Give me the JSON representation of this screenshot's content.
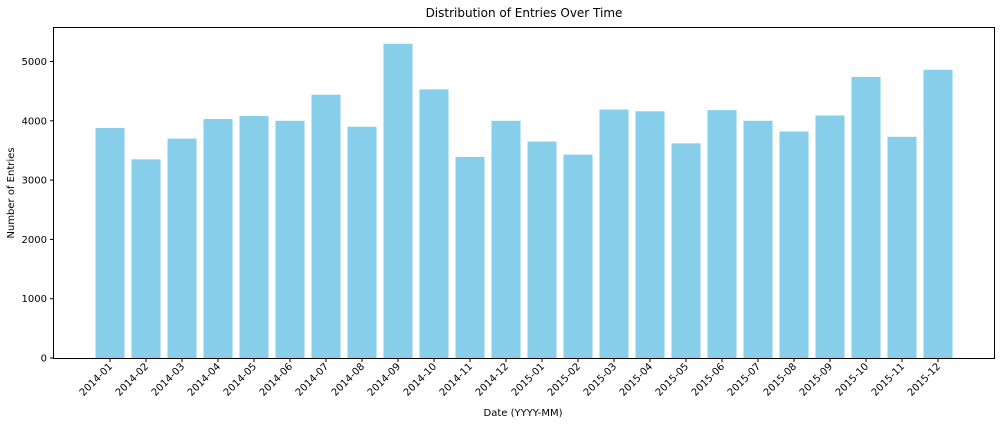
{
  "chart_data": {
    "type": "bar",
    "title": "Distribution of Entries Over Time",
    "xlabel": "Date (YYYY-MM)",
    "ylabel": "Number of Entries",
    "categories": [
      "2014-01",
      "2014-02",
      "2014-03",
      "2014-04",
      "2014-05",
      "2014-06",
      "2014-07",
      "2014-08",
      "2014-09",
      "2014-10",
      "2014-11",
      "2014-12",
      "2015-01",
      "2015-02",
      "2015-03",
      "2015-04",
      "2015-05",
      "2015-06",
      "2015-07",
      "2015-08",
      "2015-09",
      "2015-10",
      "2015-11",
      "2015-12"
    ],
    "values": [
      3880,
      3350,
      3700,
      4030,
      4080,
      4000,
      4440,
      3900,
      5300,
      4530,
      3390,
      4000,
      3650,
      3430,
      4190,
      4160,
      3620,
      4180,
      4000,
      3820,
      4090,
      4740,
      3730,
      4860
    ],
    "ylim": [
      0,
      5565
    ],
    "yticks": [
      0,
      1000,
      2000,
      3000,
      4000,
      5000
    ],
    "bar_color": "#87ceeb",
    "grid": false,
    "legend": false
  }
}
